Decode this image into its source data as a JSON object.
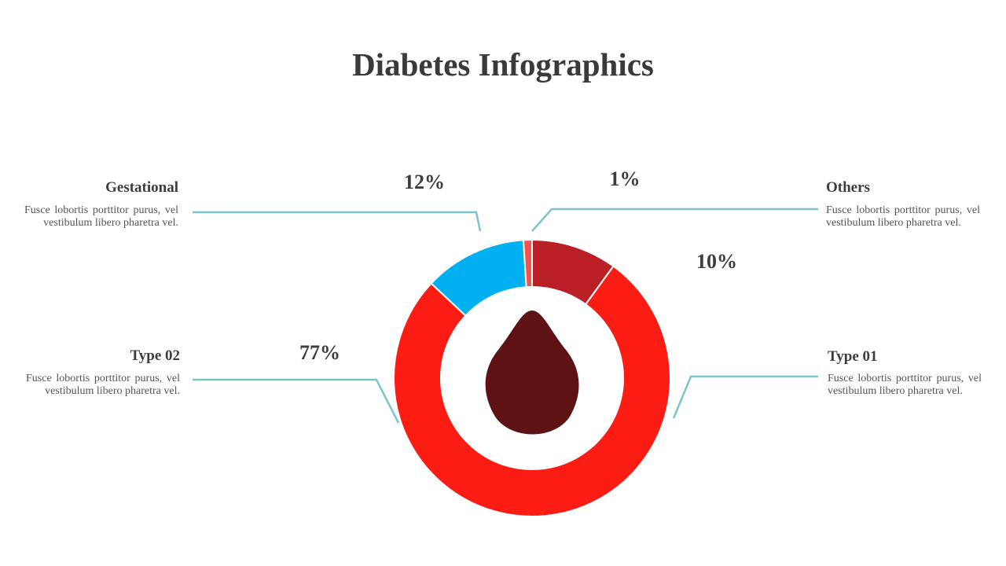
{
  "chart_data": {
    "type": "donut",
    "title": "Diabetes Infographics",
    "categories": [
      "Type 01",
      "Type 02",
      "Gestational",
      "Others"
    ],
    "descriptions": [
      "Fusce lobortis porttitor purus, vel vestibulum libero pharetra vel.",
      "Fusce lobortis porttitor purus, vel vestibulum libero pharetra vel.",
      "Fusce lobortis porttitor purus, vel vestibulum libero pharetra vel.",
      "Fusce lobortis porttitor purus, vel vestibulum libero pharetra vel."
    ],
    "values": [
      10,
      77,
      12,
      1
    ],
    "value_labels": [
      "10%",
      "77%",
      "12%",
      "1%"
    ],
    "colors": [
      "#b92025",
      "#fb1c13",
      "#00b0f0",
      "#f0524d"
    ]
  }
}
